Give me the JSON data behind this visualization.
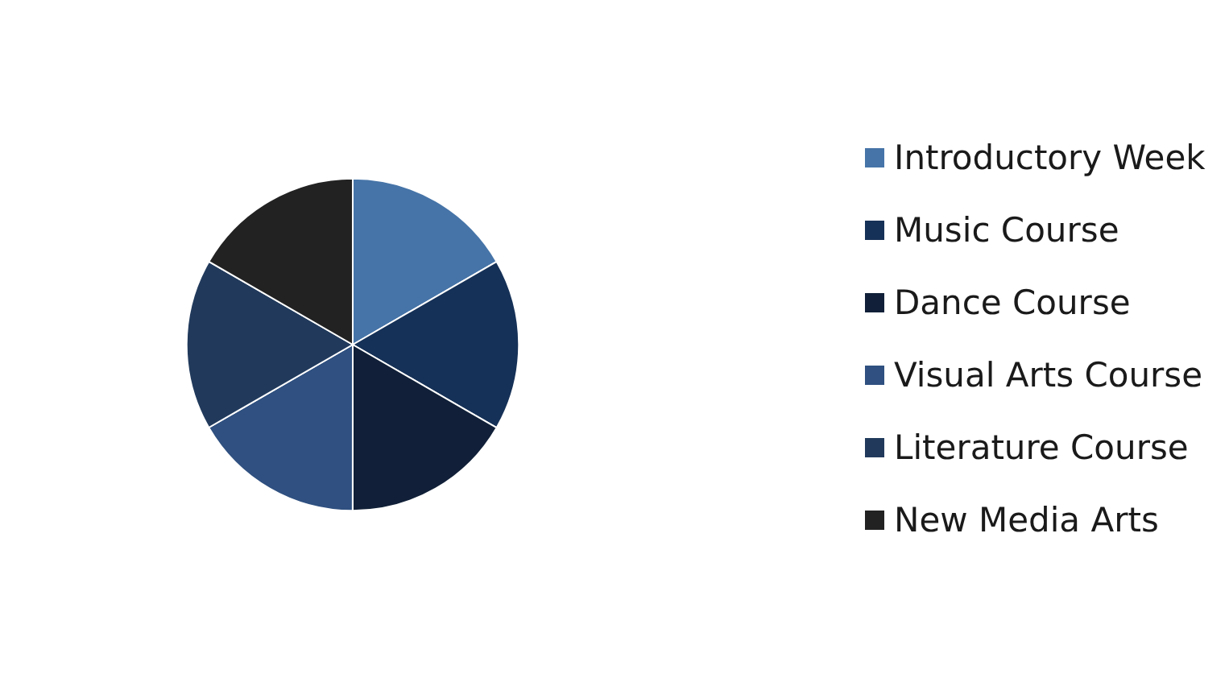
{
  "chart_data": {
    "type": "pie",
    "categories": [
      "Introductory Week",
      "Music Course",
      "Dance Course",
      "Visual Arts Course",
      "Literature Course",
      "New Media Arts"
    ],
    "values": [
      16.67,
      16.67,
      16.67,
      16.67,
      16.66,
      16.66
    ],
    "colors": [
      "#4674a8",
      "#163157",
      "#112038",
      "#2f5080",
      "#213a5c",
      "#222222"
    ],
    "legend": "right"
  }
}
